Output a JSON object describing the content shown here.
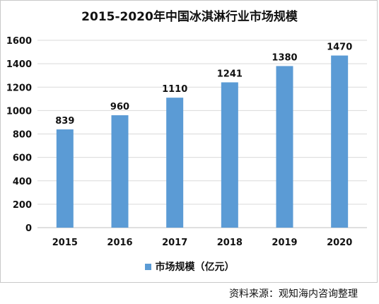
{
  "chart_data": {
    "type": "bar",
    "title": "2015-2020年中国冰淇淋行业市场规模",
    "categories": [
      "2015",
      "2016",
      "2017",
      "2018",
      "2019",
      "2020"
    ],
    "series": [
      {
        "name": "市场规模（亿元）",
        "values": [
          839,
          960,
          1110,
          1241,
          1380,
          1470
        ]
      }
    ],
    "data_labels": [
      "839",
      "960",
      "1110",
      "1241",
      "1380",
      "1470"
    ],
    "ylim": [
      0,
      1600
    ],
    "yticks": [
      0,
      200,
      400,
      600,
      800,
      1000,
      1200,
      1400,
      1600
    ],
    "grid": true,
    "legend_position": "bottom",
    "bar_color": "#5b9bd5"
  },
  "footer": {
    "source": "资料来源：观知海内咨询整理"
  }
}
